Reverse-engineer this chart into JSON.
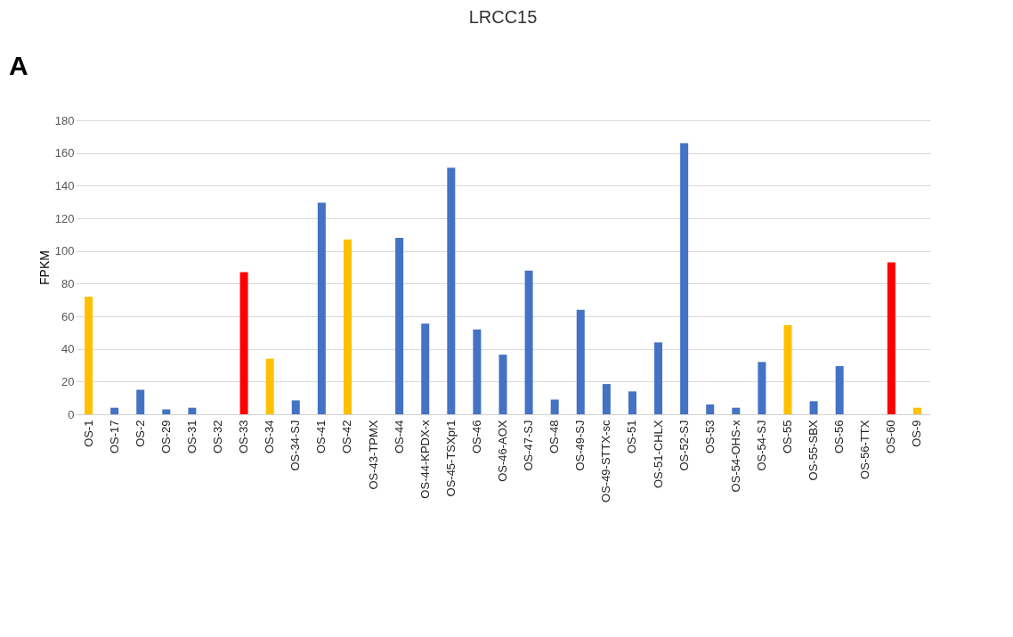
{
  "chart_data": {
    "type": "bar",
    "title": "LRCC15",
    "ylabel": "FPKM",
    "annotations": [
      "A"
    ],
    "categories": [
      "OS-1",
      "OS-17",
      "OS-2",
      "OS-29",
      "OS-31",
      "OS-32",
      "OS-33",
      "OS-34",
      "OS-34-SJ",
      "OS-41",
      "OS-42",
      "OS-43-TPMX",
      "OS-44",
      "OS-44-KPDX-x",
      "OS-45-TSXpr1",
      "OS-46",
      "OS-46-AOX",
      "OS-47-SJ",
      "OS-48",
      "OS-49-SJ",
      "OS-49-STTX-sc",
      "OS-51",
      "OS-51-CHLX",
      "OS-52-SJ",
      "OS-53",
      "OS-54-OHS-x",
      "OS-54-SJ",
      "OS-55",
      "OS-55-SBX",
      "OS-56",
      "OS-56-TTX",
      "OS-60",
      "OS-9"
    ],
    "values": [
      72,
      4,
      15,
      3,
      4,
      0,
      87,
      34,
      8.5,
      129.5,
      107,
      0,
      108,
      55.5,
      151,
      52,
      36.5,
      88,
      9,
      64,
      18.5,
      14,
      44,
      166,
      6,
      4,
      32,
      54.5,
      8,
      29.5,
      0,
      93,
      4
    ],
    "colors": [
      "#ffc000",
      "#4472c4",
      "#4472c4",
      "#4472c4",
      "#4472c4",
      "#4472c4",
      "#ff0000",
      "#ffc000",
      "#4472c4",
      "#4472c4",
      "#ffc000",
      "#4472c4",
      "#4472c4",
      "#4472c4",
      "#4472c4",
      "#4472c4",
      "#4472c4",
      "#4472c4",
      "#4472c4",
      "#4472c4",
      "#4472c4",
      "#4472c4",
      "#4472c4",
      "#4472c4",
      "#4472c4",
      "#4472c4",
      "#4472c4",
      "#ffc000",
      "#4472c4",
      "#4472c4",
      "#4472c4",
      "#ff0000",
      "#ffc000"
    ],
    "ylim": [
      0,
      180
    ],
    "yticks": [
      0,
      20,
      40,
      60,
      80,
      100,
      120,
      140,
      160,
      180
    ],
    "grid": "y"
  }
}
